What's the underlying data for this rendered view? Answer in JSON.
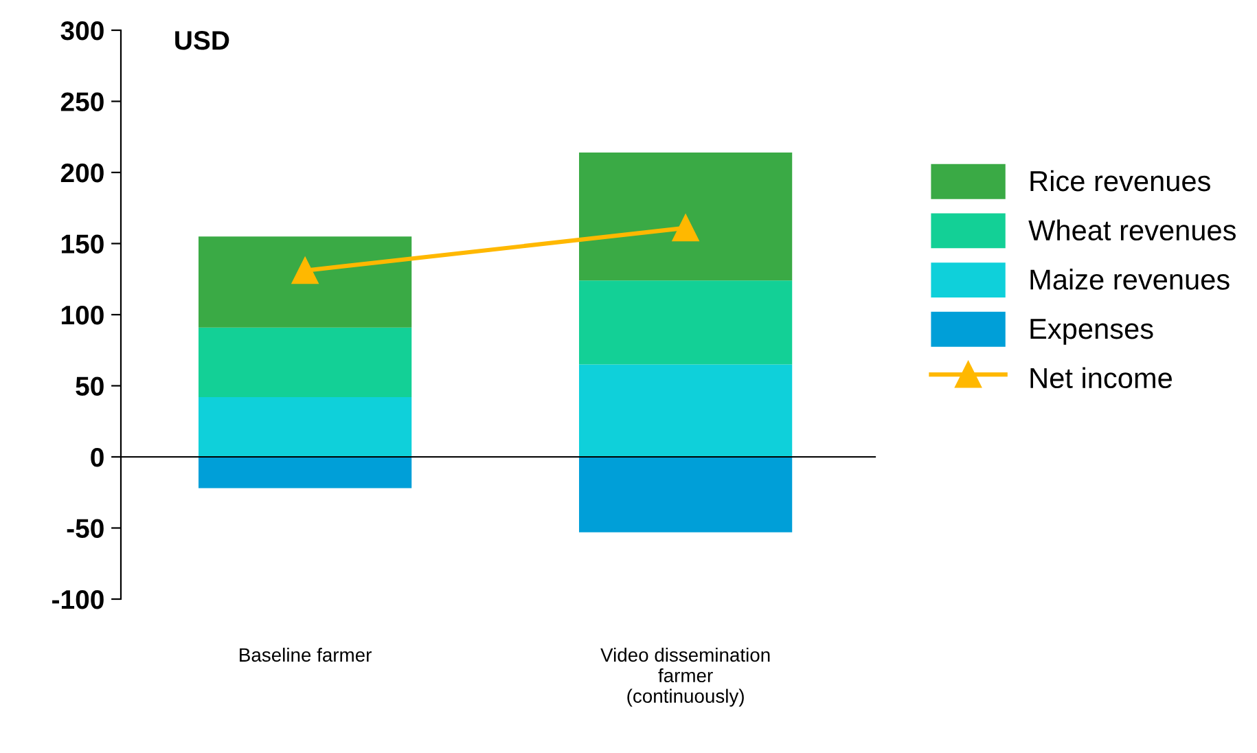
{
  "chart_data": {
    "type": "bar",
    "stacked": true,
    "ylabel": "USD",
    "categories": [
      "Baseline farmer",
      "Video dissemination\nfarmer\n(continuously)"
    ],
    "series": [
      {
        "name": "Maize revenues",
        "color": "#0fd0da",
        "values": [
          42,
          65
        ]
      },
      {
        "name": "Wheat revenues",
        "color": "#13d096",
        "values": [
          49,
          59
        ]
      },
      {
        "name": "Rice revenues",
        "color": "#3aaa45",
        "values": [
          64,
          90
        ]
      },
      {
        "name": "Expenses",
        "color": "#009fd8",
        "values": [
          -22,
          -53
        ]
      },
      {
        "name": "Net income",
        "type": "line",
        "color": "#ffb800",
        "values": [
          131,
          161
        ],
        "marker": "triangle"
      }
    ],
    "ylim": [
      -100,
      300
    ],
    "yticks": [
      -100,
      -50,
      0,
      50,
      100,
      150,
      200,
      250,
      300
    ],
    "legend": "right"
  }
}
